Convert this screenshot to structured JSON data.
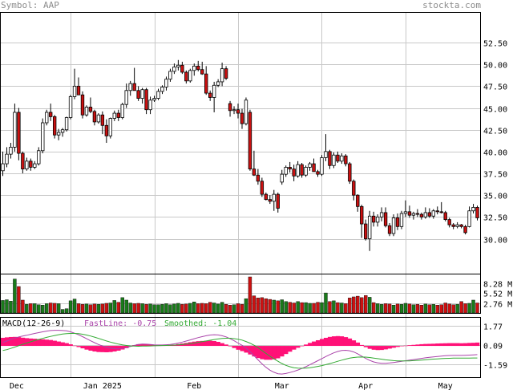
{
  "header": {
    "symbol_label": "Symbol: AAP",
    "brand": "stockta.com"
  },
  "colors": {
    "up_candle": "#ffffff",
    "down_candle": "#cc1111",
    "volume_up": "#1a7a1a",
    "volume_down": "#cc1111",
    "macd_fast": "#aa44aa",
    "macd_smooth": "#33aa33",
    "macd_hist": "#ff1177",
    "grid": "#c8c8c8"
  },
  "chart_data": [
    {
      "type": "candlestick",
      "ylim": [
        26.0,
        56.0
      ],
      "yticks": [
        "52.50",
        "50.00",
        "47.50",
        "45.00",
        "42.50",
        "40.00",
        "37.50",
        "35.00",
        "32.50",
        "30.00"
      ],
      "x_labels": [
        "Dec",
        "Jan 2025",
        "Feb",
        "Mar",
        "Apr",
        "May"
      ],
      "ohlc": [
        [
          37.8,
          40.0,
          37.2,
          38.6
        ],
        [
          38.6,
          40.5,
          38.2,
          39.7
        ],
        [
          39.7,
          41.0,
          39.2,
          40.5
        ],
        [
          40.5,
          45.5,
          40.0,
          44.5
        ],
        [
          44.5,
          45.0,
          39.0,
          39.8
        ],
        [
          39.8,
          40.0,
          37.5,
          38.0
        ],
        [
          38.0,
          39.3,
          37.8,
          38.9
        ],
        [
          38.9,
          39.2,
          37.8,
          38.2
        ],
        [
          38.2,
          38.9,
          38.0,
          38.6
        ],
        [
          38.6,
          40.5,
          38.4,
          40.1
        ],
        [
          40.1,
          43.8,
          39.8,
          43.3
        ],
        [
          43.3,
          44.8,
          43.0,
          44.5
        ],
        [
          44.5,
          45.5,
          43.5,
          44.0
        ],
        [
          44.0,
          44.2,
          41.5,
          41.9
        ],
        [
          41.9,
          42.6,
          41.3,
          42.2
        ],
        [
          42.2,
          42.7,
          41.7,
          42.5
        ],
        [
          42.5,
          44.0,
          42.3,
          43.9
        ],
        [
          43.9,
          46.5,
          43.7,
          46.3
        ],
        [
          46.3,
          49.5,
          46.0,
          47.5
        ],
        [
          47.5,
          48.5,
          46.8,
          46.5
        ],
        [
          46.5,
          46.9,
          43.8,
          44.2
        ],
        [
          44.2,
          45.3,
          44.0,
          45.1
        ],
        [
          45.1,
          46.2,
          44.4,
          44.6
        ],
        [
          44.6,
          44.8,
          43.0,
          43.4
        ],
        [
          43.4,
          44.4,
          43.2,
          44.2
        ],
        [
          44.2,
          44.6,
          42.0,
          43.0
        ],
        [
          43.0,
          43.7,
          41.0,
          41.8
        ],
        [
          41.8,
          43.9,
          41.5,
          43.8
        ],
        [
          43.8,
          44.7,
          43.5,
          44.4
        ],
        [
          44.4,
          44.8,
          43.5,
          43.9
        ],
        [
          43.9,
          45.6,
          43.7,
          45.4
        ],
        [
          45.4,
          47.8,
          45.0,
          47.0
        ],
        [
          47.0,
          48.1,
          46.4,
          47.8
        ],
        [
          47.8,
          49.6,
          47.2,
          47.0
        ],
        [
          47.0,
          47.5,
          45.8,
          46.1
        ],
        [
          46.1,
          47.3,
          45.5,
          47.1
        ],
        [
          47.1,
          47.3,
          44.3,
          44.8
        ],
        [
          44.8,
          46.3,
          44.3,
          45.9
        ],
        [
          45.9,
          46.4,
          45.7,
          46.1
        ],
        [
          46.1,
          47.2,
          45.9,
          46.9
        ],
        [
          46.9,
          47.6,
          46.6,
          47.4
        ],
        [
          47.4,
          48.6,
          47.0,
          48.3
        ],
        [
          48.3,
          49.5,
          48.0,
          49.2
        ],
        [
          49.2,
          50.1,
          48.9,
          49.7
        ],
        [
          49.7,
          50.5,
          49.3,
          49.9
        ],
        [
          49.9,
          50.3,
          48.9,
          49.1
        ],
        [
          49.1,
          49.3,
          47.8,
          48.1
        ],
        [
          48.1,
          49.5,
          47.9,
          49.3
        ],
        [
          49.3,
          50.1,
          48.7,
          49.8
        ],
        [
          49.8,
          50.4,
          49.2,
          49.4
        ],
        [
          49.4,
          50.3,
          48.8,
          48.9
        ],
        [
          48.9,
          49.8,
          46.5,
          46.7
        ],
        [
          46.7,
          47.0,
          45.8,
          46.2
        ],
        [
          46.2,
          48.0,
          44.5,
          47.6
        ],
        [
          47.6,
          48.3,
          47.4,
          48.0
        ],
        [
          48.0,
          50.2,
          47.5,
          49.5
        ],
        [
          49.5,
          49.8,
          48.2,
          48.4
        ],
        [
          45.5,
          45.8,
          44.0,
          44.7
        ],
        [
          44.7,
          45.2,
          44.3,
          44.8
        ],
        [
          44.8,
          45.5,
          43.8,
          44.4
        ],
        [
          44.4,
          44.9,
          42.6,
          43.2
        ],
        [
          43.2,
          46.2,
          43.0,
          45.9
        ],
        [
          44.5,
          44.8,
          37.8,
          38.0
        ],
        [
          38.0,
          40.1,
          37.2,
          37.3
        ],
        [
          37.3,
          38.0,
          36.2,
          36.6
        ],
        [
          36.6,
          37.0,
          34.8,
          35.1
        ],
        [
          35.1,
          35.3,
          34.4,
          34.5
        ],
        [
          34.5,
          35.0,
          34.0,
          34.3
        ],
        [
          34.3,
          35.6,
          33.2,
          35.1
        ],
        [
          35.1,
          35.3,
          33.0,
          33.5
        ],
        [
          36.5,
          37.9,
          36.2,
          37.4
        ],
        [
          37.4,
          38.4,
          37.1,
          38.2
        ],
        [
          38.2,
          38.8,
          37.6,
          38.0
        ],
        [
          38.0,
          38.5,
          36.6,
          37.2
        ],
        [
          37.2,
          38.9,
          37.0,
          38.5
        ],
        [
          38.5,
          38.7,
          37.0,
          37.3
        ],
        [
          37.3,
          38.4,
          37.1,
          38.2
        ],
        [
          38.2,
          38.8,
          37.8,
          38.6
        ],
        [
          38.6,
          39.2,
          38.0,
          37.7
        ],
        [
          37.7,
          37.9,
          37.1,
          37.4
        ],
        [
          37.4,
          39.6,
          37.2,
          39.3
        ],
        [
          39.3,
          42.0,
          38.9,
          40.0
        ],
        [
          40.0,
          40.2,
          38.0,
          38.4
        ],
        [
          38.4,
          39.9,
          38.1,
          39.6
        ],
        [
          39.6,
          40.0,
          38.7,
          38.9
        ],
        [
          38.9,
          39.8,
          38.6,
          39.5
        ],
        [
          39.5,
          39.7,
          38.3,
          38.6
        ],
        [
          38.6,
          38.8,
          36.3,
          36.6
        ],
        [
          36.6,
          36.8,
          34.4,
          35.0
        ],
        [
          35.0,
          35.1,
          33.1,
          33.7
        ],
        [
          33.7,
          33.9,
          30.1,
          31.7
        ],
        [
          31.7,
          32.2,
          29.8,
          30.0
        ],
        [
          30.0,
          33.2,
          28.6,
          32.6
        ],
        [
          32.6,
          33.1,
          31.4,
          31.9
        ],
        [
          31.9,
          32.8,
          31.4,
          32.5
        ],
        [
          32.5,
          33.6,
          32.0,
          33.0
        ],
        [
          33.0,
          33.6,
          31.3,
          31.5
        ],
        [
          31.5,
          31.8,
          30.3,
          30.6
        ],
        [
          30.6,
          32.8,
          30.3,
          32.4
        ],
        [
          32.4,
          32.9,
          31.0,
          31.4
        ],
        [
          31.4,
          33.2,
          31.1,
          32.9
        ],
        [
          32.9,
          34.4,
          32.5,
          33.1
        ],
        [
          33.1,
          33.8,
          32.4,
          32.7
        ],
        [
          32.7,
          33.1,
          32.2,
          32.9
        ],
        [
          32.9,
          33.4,
          32.5,
          32.8
        ],
        [
          32.8,
          33.0,
          32.2,
          32.5
        ],
        [
          32.5,
          33.6,
          32.3,
          33.0
        ],
        [
          33.0,
          33.5,
          32.4,
          32.6
        ],
        [
          32.6,
          33.4,
          32.3,
          33.2
        ],
        [
          33.2,
          33.7,
          32.8,
          33.1
        ],
        [
          33.1,
          34.2,
          32.9,
          33.0
        ],
        [
          33.0,
          33.2,
          32.0,
          32.2
        ],
        [
          32.2,
          32.4,
          31.3,
          31.6
        ],
        [
          31.6,
          31.8,
          31.1,
          31.4
        ],
        [
          31.4,
          31.9,
          31.2,
          31.6
        ],
        [
          31.6,
          31.7,
          31.2,
          31.4
        ],
        [
          31.4,
          31.6,
          30.5,
          30.7
        ],
        [
          31.4,
          33.7,
          31.3,
          33.2
        ],
        [
          33.2,
          34.0,
          32.9,
          33.6
        ],
        [
          33.6,
          33.8,
          32.1,
          32.4
        ]
      ]
    },
    {
      "type": "bar",
      "name": "volume",
      "yticks": [
        "8.28 M",
        "5.52 M",
        "2.76 M"
      ],
      "ylim": [
        0,
        11.0
      ],
      "values": [
        3.5,
        3.7,
        3.3,
        9.5,
        7.4,
        3.6,
        2.4,
        2.6,
        2.6,
        2.3,
        2.2,
        2.6,
        2.8,
        2.7,
        2.6,
        1.0,
        1.2,
        3.4,
        3.9,
        2.6,
        2.4,
        2.5,
        2.3,
        2.5,
        2.4,
        2.5,
        2.7,
        2.8,
        3.5,
        3.0,
        4.3,
        3.6,
        2.8,
        2.6,
        2.7,
        2.6,
        2.4,
        2.5,
        2.3,
        2.3,
        2.4,
        2.6,
        2.3,
        2.5,
        2.7,
        2.4,
        2.5,
        2.7,
        3.1,
        2.6,
        2.7,
        2.6,
        3.0,
        2.8,
        2.5,
        3.0,
        2.4,
        2.2,
        2.3,
        2.6,
        2.4,
        4.0,
        10.1,
        4.8,
        4.2,
        4.3,
        4.0,
        3.8,
        3.6,
        3.4,
        3.7,
        3.2,
        3.0,
        2.8,
        3.2,
        2.9,
        2.9,
        2.7,
        2.7,
        3.0,
        2.9,
        5.6,
        3.2,
        3.4,
        2.9,
        2.8,
        2.6,
        4.2,
        4.5,
        4.7,
        4.3,
        4.9,
        4.4,
        2.9,
        2.6,
        2.4,
        2.6,
        2.5,
        2.2,
        2.5,
        2.4,
        2.7,
        2.5,
        2.3,
        2.4,
        2.2,
        2.5,
        2.3,
        2.4,
        2.2,
        2.3,
        2.8,
        2.5,
        2.3,
        2.4,
        3.2,
        2.6,
        2.7,
        3.6,
        2.8
      ],
      "up": [
        1,
        1,
        1,
        1,
        0,
        0,
        1,
        0,
        1,
        1,
        1,
        1,
        0,
        0,
        1,
        1,
        1,
        1,
        1,
        0,
        0,
        1,
        0,
        0,
        1,
        0,
        0,
        1,
        1,
        0,
        1,
        1,
        1,
        0,
        0,
        1,
        0,
        1,
        1,
        1,
        1,
        1,
        1,
        1,
        1,
        0,
        0,
        1,
        1,
        0,
        0,
        0,
        0,
        1,
        1,
        1,
        0,
        0,
        1,
        0,
        0,
        1,
        0,
        0,
        0,
        0,
        0,
        0,
        1,
        0,
        1,
        1,
        0,
        0,
        1,
        0,
        1,
        1,
        0,
        0,
        1,
        1,
        0,
        1,
        0,
        1,
        0,
        0,
        0,
        0,
        0,
        0,
        1,
        0,
        1,
        1,
        0,
        0,
        1,
        0,
        1,
        1,
        0,
        1,
        0,
        0,
        1,
        0,
        1,
        0,
        0,
        0,
        0,
        0,
        1,
        0,
        0,
        1,
        1,
        0
      ]
    },
    {
      "type": "line",
      "name": "macd",
      "indicator_label": "MACD(12-26-9)",
      "fast_label": "FastLine: -0.75",
      "smooth_label": "Smoothed: -1.04",
      "yticks": [
        "1.77",
        "0.09",
        "-1.59"
      ],
      "ylim": [
        -2.7,
        2.5
      ],
      "fast": [
        0.3,
        0.42,
        0.55,
        0.68,
        0.78,
        0.85,
        0.92,
        1.0,
        1.08,
        1.15,
        1.22,
        1.28,
        1.33,
        1.35,
        1.35,
        1.33,
        1.3,
        1.22,
        1.1,
        0.96,
        0.8,
        0.62,
        0.45,
        0.28,
        0.12,
        0.0,
        -0.12,
        -0.2,
        -0.24,
        -0.25,
        -0.22,
        -0.15,
        -0.05,
        0.05,
        0.12,
        0.16,
        0.15,
        0.12,
        0.09,
        0.08,
        0.08,
        0.1,
        0.13,
        0.18,
        0.25,
        0.33,
        0.42,
        0.52,
        0.62,
        0.72,
        0.8,
        0.88,
        0.94,
        0.97,
        0.95,
        0.88,
        0.78,
        0.62,
        0.45,
        0.25,
        0.05,
        -0.2,
        -0.5,
        -0.85,
        -1.2,
        -1.55,
        -1.85,
        -2.1,
        -2.28,
        -2.4,
        -2.43,
        -2.38,
        -2.3,
        -2.2,
        -2.08,
        -1.95,
        -1.8,
        -1.62,
        -1.45,
        -1.28,
        -1.1,
        -0.92,
        -0.75,
        -0.6,
        -0.48,
        -0.4,
        -0.38,
        -0.42,
        -0.52,
        -0.68,
        -0.88,
        -1.08,
        -1.25,
        -1.38,
        -1.46,
        -1.5,
        -1.5,
        -1.47,
        -1.43,
        -1.38,
        -1.33,
        -1.28,
        -1.23,
        -1.18,
        -1.13,
        -1.08,
        -1.03,
        -0.99,
        -0.95,
        -0.91,
        -0.88,
        -0.85,
        -0.83,
        -0.82,
        -0.82,
        -0.82,
        -0.81,
        -0.79,
        -0.77,
        -0.75
      ],
      "smooth": [
        -0.4,
        -0.32,
        -0.22,
        -0.1,
        0.02,
        0.14,
        0.25,
        0.36,
        0.46,
        0.56,
        0.65,
        0.74,
        0.82,
        0.9,
        0.97,
        1.02,
        1.06,
        1.08,
        1.08,
        1.06,
        1.01,
        0.94,
        0.86,
        0.76,
        0.65,
        0.54,
        0.43,
        0.33,
        0.24,
        0.16,
        0.09,
        0.04,
        0.0,
        -0.02,
        -0.03,
        -0.02,
        -0.01,
        0.0,
        0.01,
        0.02,
        0.03,
        0.04,
        0.05,
        0.07,
        0.09,
        0.12,
        0.16,
        0.2,
        0.25,
        0.31,
        0.37,
        0.43,
        0.49,
        0.55,
        0.6,
        0.64,
        0.66,
        0.66,
        0.63,
        0.58,
        0.5,
        0.38,
        0.24,
        0.06,
        -0.15,
        -0.4,
        -0.65,
        -0.9,
        -1.12,
        -1.33,
        -1.52,
        -1.68,
        -1.8,
        -1.88,
        -1.92,
        -1.93,
        -1.92,
        -1.88,
        -1.83,
        -1.77,
        -1.7,
        -1.62,
        -1.53,
        -1.43,
        -1.33,
        -1.23,
        -1.14,
        -1.06,
        -1.0,
        -0.97,
        -0.96,
        -0.97,
        -1.0,
        -1.05,
        -1.1,
        -1.15,
        -1.2,
        -1.24,
        -1.27,
        -1.29,
        -1.3,
        -1.3,
        -1.29,
        -1.27,
        -1.25,
        -1.23,
        -1.2,
        -1.17,
        -1.14,
        -1.12,
        -1.1,
        -1.08,
        -1.07,
        -1.06,
        -1.06,
        -1.05,
        -1.05,
        -1.05,
        -1.04,
        -1.04
      ]
    }
  ]
}
